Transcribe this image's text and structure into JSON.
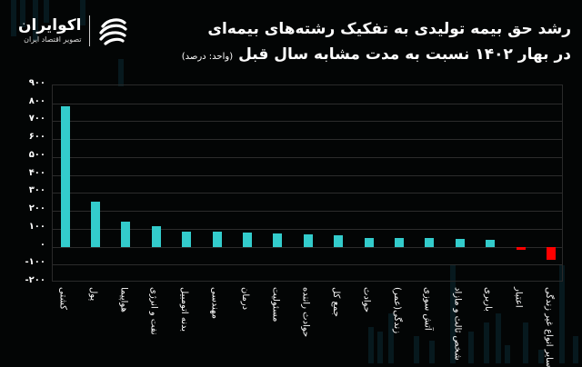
{
  "header": {
    "title_line1": "رشد حق بیمه تولیدی به تفکیک رشته‌های بیمه‌ای",
    "title_line2": "در بهار ۱۴۰۲ نسبت به مدت مشابه سال قبل",
    "unit": "(واحد: درصد)"
  },
  "logo": {
    "name": "اکوایران",
    "tagline": "تصویر اقتصاد ایران"
  },
  "colors": {
    "positive": "#33cccc",
    "negative": "#ff0000",
    "background": "#030505",
    "grid": "#2c2c2c"
  },
  "chart_data": {
    "type": "bar",
    "title": "رشد حق بیمه تولیدی به تفکیک رشته‌های بیمه‌ای در بهار ۱۴۰۲ نسبت به مدت مشابه سال قبل",
    "subtitle": "(واحد: درصد)",
    "xlabel": "",
    "ylabel": "درصد",
    "ylim": [
      -200,
      900
    ],
    "yticks": [
      900,
      800,
      700,
      600,
      500,
      400,
      300,
      200,
      100,
      0,
      -100,
      -200
    ],
    "ytick_labels": [
      "۹۰۰",
      "۸۰۰",
      "۷۰۰",
      "۶۰۰",
      "۵۰۰",
      "۴۰۰",
      "۳۰۰",
      "۲۰۰",
      "۱۰۰",
      "۰",
      "-۱۰۰",
      "-۲۰۰"
    ],
    "grid": true,
    "legend": null,
    "categories": [
      "کشتی",
      "پول",
      "هواپیما",
      "نفت و انرژی",
      "بدنه اتومبیل",
      "مهندسی",
      "درمان",
      "مسئولیت",
      "حوادث راننده",
      "جمع کل",
      "حوادث",
      "زندگی(عمر)",
      "آتش سوزی",
      "شخص ثالث و مازاد",
      "باربری",
      "اعتبار",
      "سایر انواع غیر زندگی"
    ],
    "values": [
      785,
      252,
      141,
      113,
      86,
      83,
      78,
      74,
      69,
      66,
      50,
      47,
      47,
      42,
      39,
      -19,
      -73
    ]
  }
}
